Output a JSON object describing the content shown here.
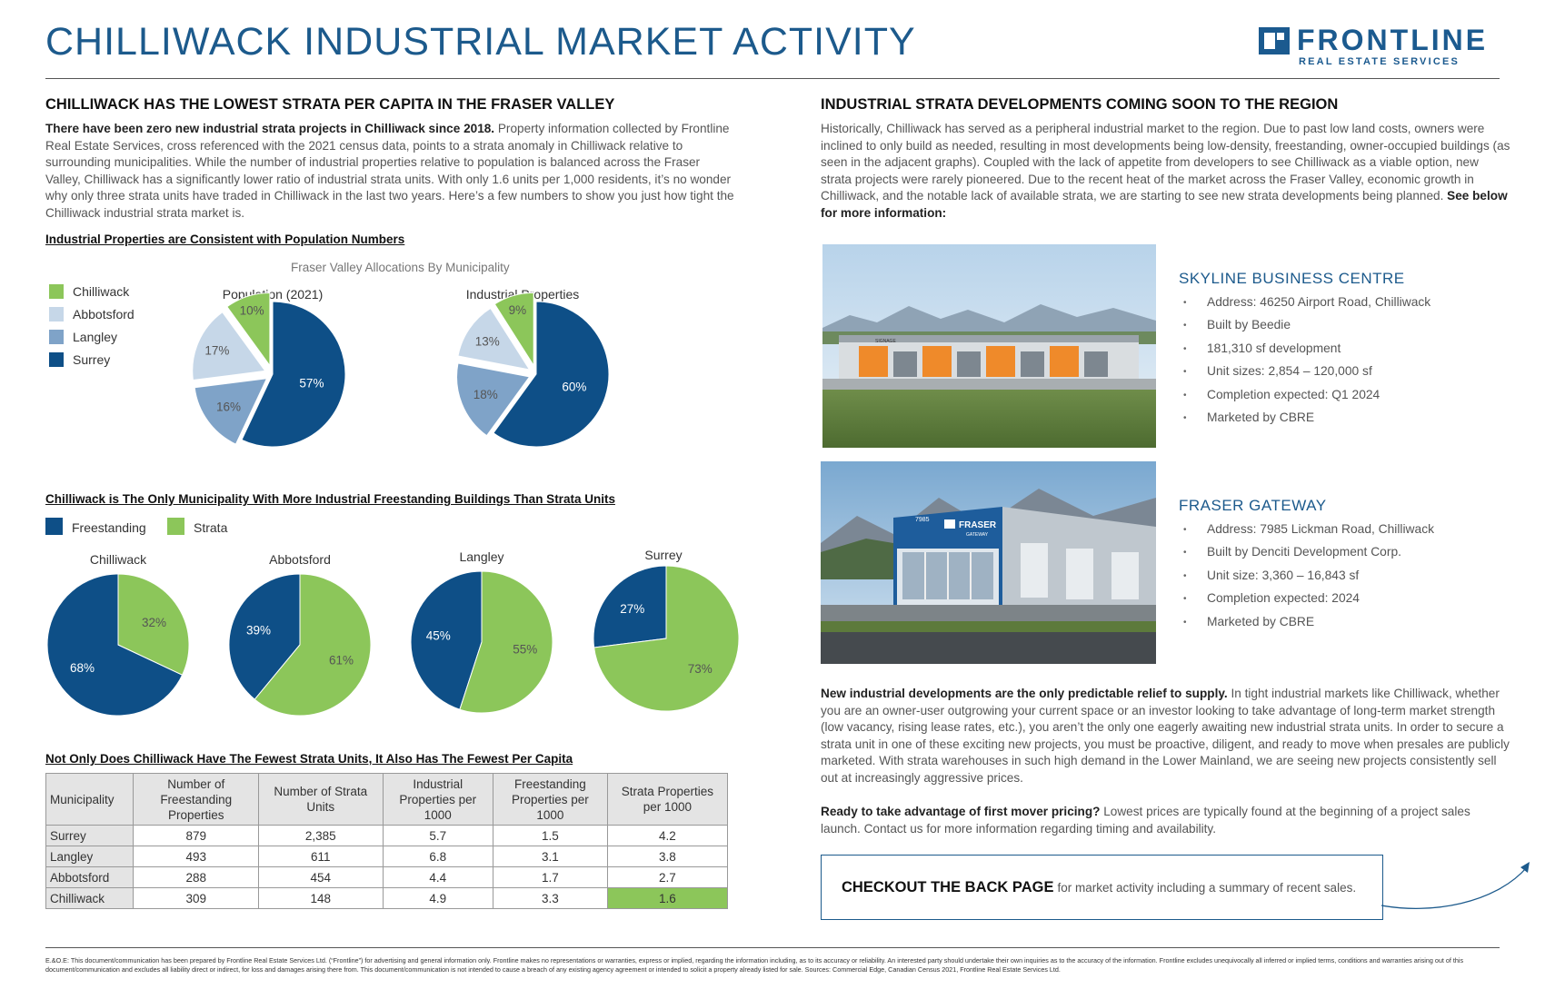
{
  "header": {
    "title": "CHILLIWACK INDUSTRIAL MARKET ACTIVITY",
    "logo_name": "FRONTLINE",
    "logo_sub": "REAL ESTATE SERVICES"
  },
  "left": {
    "section_title": "CHILLIWACK HAS THE LOWEST STRATA PER CAPITA IN THE FRASER VALLEY",
    "intro_bold": "There have been zero new industrial strata projects in Chilliwack since 2018.",
    "intro_rest": " Property information collected by Frontline Real Estate Services, cross referenced with the 2021 census data, points to a strata anomaly in Chilliwack relative to surrounding municipalities. While the number of industrial properties relative to population is balanced across the Fraser Valley, Chilliwack has a significantly lower ratio of industrial strata units. With only 1.6 units per 1,000 residents, it’s no wonder why only three strata units have traded in Chilliwack in the last two years. Here’s a few numbers to show you just how tight the Chilliwack industrial strata market is.",
    "sub1": "Industrial Properties are Consistent with Population Numbers",
    "sub2": "Chilliwack is The Only Municipality With More Industrial Freestanding Buildings Than Strata Units",
    "sub3": "Not Only Does Chilliwack Have The Fewest Strata Units, It Also Has The Fewest Per Capita"
  },
  "colors": {
    "chilliwack": "#8cc65a",
    "abbotsford": "#c6d7e8",
    "langley": "#7fa3c8",
    "surrey": "#0e4f87",
    "freestanding": "#0e4f87",
    "strata": "#8cc65a",
    "accent": "#1c5a8c"
  },
  "chart_data": [
    {
      "type": "pie",
      "title": "Population (2021)",
      "group_title": "Fraser Valley Allocations By Municipality",
      "labels": [
        "Chilliwack",
        "Abbotsford",
        "Langley",
        "Surrey"
      ],
      "values": [
        10,
        17,
        16,
        57
      ],
      "legend": "left"
    },
    {
      "type": "pie",
      "title": "Industrial Properties",
      "group_title": "Fraser Valley Allocations By Municipality",
      "labels": [
        "Chilliwack",
        "Abbotsford",
        "Langley",
        "Surrey"
      ],
      "values": [
        9,
        13,
        18,
        60
      ],
      "legend": "left"
    },
    {
      "type": "pie",
      "title": "Chilliwack",
      "labels": [
        "Freestanding",
        "Strata"
      ],
      "values": [
        68,
        32
      ],
      "legend": "top-left"
    },
    {
      "type": "pie",
      "title": "Abbotsford",
      "labels": [
        "Freestanding",
        "Strata"
      ],
      "values": [
        39,
        61
      ],
      "legend": "top-left"
    },
    {
      "type": "pie",
      "title": "Langley",
      "labels": [
        "Freestanding",
        "Strata"
      ],
      "values": [
        45,
        55
      ],
      "legend": "top-left"
    },
    {
      "type": "pie",
      "title": "Surrey",
      "labels": [
        "Freestanding",
        "Strata"
      ],
      "values": [
        27,
        73
      ],
      "legend": "top-left"
    },
    {
      "type": "table",
      "columns": [
        "Municipality",
        "Number of Freestanding Properties",
        "Number of Strata Units",
        "Industrial Properties per 1000",
        "Freestanding Properties per 1000",
        "Strata Properties per 1000"
      ],
      "rows": [
        [
          "Surrey",
          "879",
          "2,385",
          "5.7",
          "1.5",
          "4.2"
        ],
        [
          "Langley",
          "493",
          "611",
          "6.8",
          "3.1",
          "3.8"
        ],
        [
          "Abbotsford",
          "288",
          "454",
          "4.4",
          "1.7",
          "2.7"
        ],
        [
          "Chilliwack",
          "309",
          "148",
          "4.9",
          "3.3",
          "1.6"
        ]
      ]
    }
  ],
  "right": {
    "section_title": "INDUSTRIAL STRATA DEVELOPMENTS COMING SOON TO THE REGION",
    "intro": "Historically, Chilliwack has served as a peripheral industrial market to the region. Due to past low land costs, owners were inclined to only build as needed, resulting in most developments being low-density, freestanding, owner-occupied buildings (as seen in the adjacent graphs). Coupled with the lack of appetite from developers to see Chilliwack as a viable option, new strata projects were rarely pioneered. Due to the recent heat of the market across the Fraser Valley, economic growth in Chilliwack, and the notable lack of available strata, we are starting to see new strata developments being planned. ",
    "intro_bold": "See below for more information:",
    "projects": [
      {
        "title": "SKYLINE BUSINESS CENTRE",
        "items": [
          "Address: 46250 Airport Road, Chilliwack",
          "Built by Beedie",
          "181,310 sf development",
          "Unit sizes: 2,854 – 120,000 sf",
          "Completion expected: Q1 2024",
          "Marketed by CBRE"
        ],
        "signage": "SIGNAGE"
      },
      {
        "title": "FRASER GATEWAY",
        "items": [
          "Address: 7985 Lickman Road, Chilliwack",
          "Built by Denciti Development Corp.",
          "Unit size: 3,360 – 16,843 sf",
          "Completion expected: 2024",
          "Marketed by CBRE"
        ],
        "sign_number": "7985",
        "sign_name": "FRASER",
        "sign_sub": "GATEWAY"
      }
    ],
    "para2_bold": "New industrial developments are the only predictable relief to supply.",
    "para2_rest": " In tight industrial markets like Chilliwack, whether you are an owner-user outgrowing your current space or an investor looking to take advantage of long-term market strength (low vacancy, rising lease rates, etc.), you aren’t the only one eagerly awaiting new industrial strata units. In order to secure a strata unit in one of these exciting new projects, you must be proactive, diligent, and ready to move when presales are publicly marketed. With strata warehouses in such high demand in the Lower Mainland, we are seeing new projects consistently sell out at increasingly aggressive prices.",
    "para3_bold": "Ready to take advantage of first mover pricing?",
    "para3_rest": " Lowest prices are typically found at the beginning of a project sales launch. Contact us for more information regarding timing and availability.",
    "cta_bold": "CHECKOUT THE BACK PAGE",
    "cta_rest": "for market activity including a summary of recent sales."
  },
  "footer": {
    "disclaimer": "E.&O.E: This document/communication has been prepared by Frontline Real Estate Services Ltd. (“Frontline”) for advertising and general information only. Frontline makes no representations or warranties, express or implied, regarding the information including, as to its accuracy or reliability. An interested party should undertake their own inquiries as to the accuracy of the information. Frontline excludes unequivocally all inferred or implied terms, conditions and warranties arising out of this document/communication and excludes all liability direct or indirect, for loss and damages arising there from. This document/communication is not intended to cause a breach of any existing agency agreement or intended to solicit a property already listed for sale. Sources: Commercial Edge, Canadian Census 2021, Frontline Real Estate Services Ltd."
  }
}
